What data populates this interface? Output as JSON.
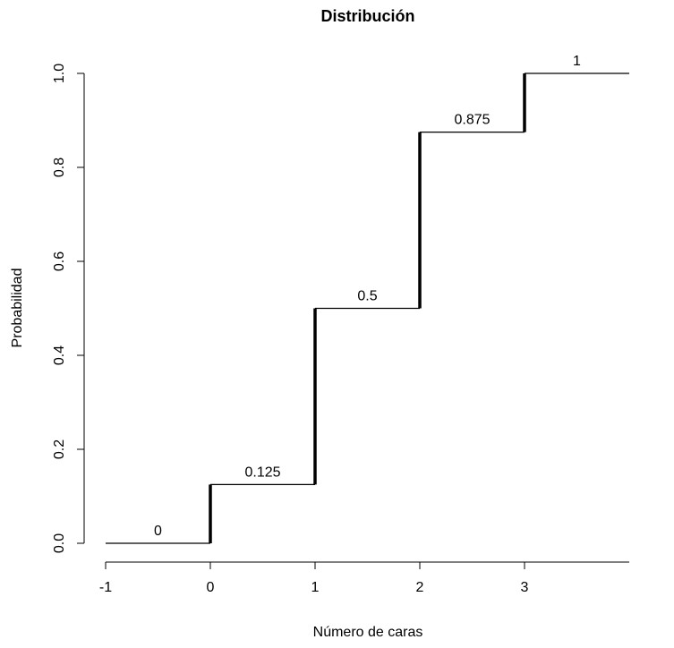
{
  "chart_data": {
    "type": "step",
    "title": "Distribución",
    "xlabel": "Número de caras",
    "ylabel": "Probabilidad",
    "xlim": [
      -1,
      4
    ],
    "ylim": [
      0,
      1
    ],
    "x_ticks": [
      -1,
      0,
      1,
      2,
      3
    ],
    "x_tick_labels": [
      "-1",
      "0",
      "1",
      "2",
      "3"
    ],
    "y_ticks": [
      0,
      0.2,
      0.4,
      0.6,
      0.8,
      1.0
    ],
    "y_tick_labels": [
      "0.0",
      "0.2",
      "0.4",
      "0.6",
      "0.8",
      "1.0"
    ],
    "steps": [
      {
        "x0": -1,
        "x1": 0,
        "y": 0,
        "label": "0"
      },
      {
        "x0": 0,
        "x1": 1,
        "y": 0.125,
        "label": "0.125"
      },
      {
        "x0": 1,
        "x1": 2,
        "y": 0.5,
        "label": "0.5"
      },
      {
        "x0": 2,
        "x1": 3,
        "y": 0.875,
        "label": "0.875"
      },
      {
        "x0": 3,
        "x1": 4,
        "y": 1,
        "label": "1"
      }
    ],
    "jumps": [
      {
        "x": 0,
        "y0": 0,
        "y1": 0.125
      },
      {
        "x": 1,
        "y0": 0.125,
        "y1": 0.5
      },
      {
        "x": 2,
        "y0": 0.5,
        "y1": 0.875
      },
      {
        "x": 3,
        "y0": 0.875,
        "y1": 1
      }
    ],
    "colors": {
      "line": "#000000",
      "background": "#ffffff"
    },
    "grid": false,
    "legend": "none"
  }
}
